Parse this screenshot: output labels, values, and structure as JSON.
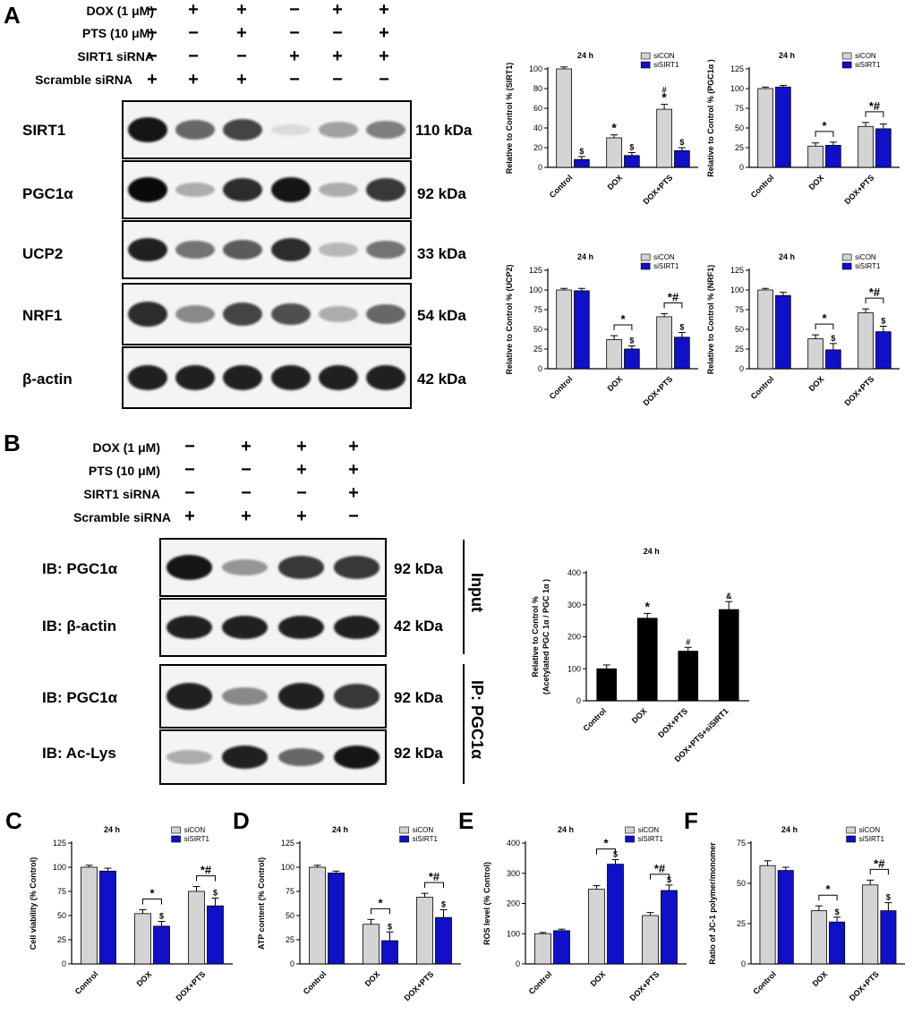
{
  "panels": {
    "a": "A",
    "b": "B",
    "c": "C",
    "d": "D",
    "e": "E",
    "f": "F"
  },
  "panelA": {
    "conditions": [
      {
        "label": "DOX (1 μM)",
        "signs": [
          "−",
          "+",
          "+",
          "−",
          "+",
          "+"
        ]
      },
      {
        "label": "PTS (10 μM)",
        "signs": [
          "−",
          "−",
          "+",
          "−",
          "−",
          "+"
        ]
      },
      {
        "label": "SIRT1 siRNA",
        "signs": [
          "−",
          "−",
          "−",
          "+",
          "+",
          "+"
        ]
      },
      {
        "label": "Scramble siRNA",
        "signs": [
          "+",
          "+",
          "+",
          "−",
          "−",
          "−"
        ]
      }
    ],
    "blots": [
      {
        "name": "SIRT1",
        "kda": "110 kDa",
        "intensity": [
          0.95,
          0.6,
          0.75,
          0.1,
          0.35,
          0.5
        ]
      },
      {
        "name": "PGC1α",
        "kda": "92 kDa",
        "intensity": [
          1.0,
          0.3,
          0.85,
          0.95,
          0.3,
          0.8
        ]
      },
      {
        "name": "UCP2",
        "kda": "33 kDa",
        "intensity": [
          0.9,
          0.55,
          0.65,
          0.85,
          0.25,
          0.55
        ]
      },
      {
        "name": "NRF1",
        "kda": "54 kDa",
        "intensity": [
          0.85,
          0.45,
          0.75,
          0.7,
          0.3,
          0.6
        ]
      },
      {
        "name": "β-actin",
        "kda": "42 kDa",
        "intensity": [
          0.9,
          0.9,
          0.9,
          0.9,
          0.9,
          0.9
        ]
      }
    ]
  },
  "panelB": {
    "conditions": [
      {
        "label": "DOX (1 μM)",
        "signs": [
          "−",
          "+",
          "+",
          "+"
        ]
      },
      {
        "label": "PTS (10 μM)",
        "signs": [
          "−",
          "−",
          "+",
          "+"
        ]
      },
      {
        "label": "SIRT1 siRNA",
        "signs": [
          "−",
          "−",
          "−",
          "+"
        ]
      },
      {
        "label": "Scramble siRNA",
        "signs": [
          "+",
          "+",
          "+",
          "−"
        ]
      }
    ],
    "blots": [
      {
        "name": "IB: PGC1α",
        "kda": "92 kDa",
        "intensity": [
          0.95,
          0.4,
          0.8,
          0.8
        ]
      },
      {
        "name": "IB: β-actin",
        "kda": "42 kDa",
        "intensity": [
          0.9,
          0.9,
          0.9,
          0.9
        ]
      },
      {
        "name": "IB: PGC1α",
        "kda": "92 kDa",
        "intensity": [
          0.9,
          0.45,
          0.9,
          0.8
        ]
      },
      {
        "name": "IB:  Ac-Lys",
        "kda": "92 kDa",
        "intensity": [
          0.3,
          0.9,
          0.6,
          0.95
        ]
      }
    ],
    "input_label": "Input",
    "ip_label": "IP: PGC1α"
  },
  "chart_data": [
    {
      "id": "a1",
      "type": "bar",
      "title": "24 h",
      "ylabel": "Relative to Control % (SIRT1)",
      "ylim": [
        0,
        100
      ],
      "yticks": [
        0,
        20,
        40,
        60,
        80,
        100
      ],
      "categories": [
        "Control",
        "DOX",
        "DOX+PTS"
      ],
      "legend": [
        "siCON",
        "siSIRT1"
      ],
      "series": [
        {
          "name": "siCON",
          "values": [
            100,
            30,
            59
          ],
          "errors": [
            2,
            3,
            5
          ]
        },
        {
          "name": "siSIRT1",
          "values": [
            8,
            12,
            17
          ],
          "errors": [
            3,
            3,
            3
          ]
        }
      ],
      "annotations": [
        {
          "cat": 1,
          "s": 0,
          "text": "*"
        },
        {
          "cat": 2,
          "s": 0,
          "text": "*"
        },
        {
          "cat": 2,
          "s": 0,
          "text": "#"
        },
        {
          "cat": 0,
          "s": 1,
          "text": "$"
        },
        {
          "cat": 1,
          "s": 1,
          "text": "$"
        },
        {
          "cat": 2,
          "s": 1,
          "text": "$"
        }
      ],
      "brackets": []
    },
    {
      "id": "a2",
      "type": "bar",
      "title": "24 h",
      "ylabel": "Relative to Control % (PGC1α )",
      "ylim": [
        0,
        125
      ],
      "yticks": [
        0,
        25,
        50,
        75,
        100,
        125
      ],
      "categories": [
        "Control",
        "DOX",
        "DOX+PTS"
      ],
      "legend": [
        "siCON",
        "siSIRT1"
      ],
      "series": [
        {
          "name": "siCON",
          "values": [
            100,
            27,
            52
          ],
          "errors": [
            2,
            4,
            5
          ]
        },
        {
          "name": "siSIRT1",
          "values": [
            102,
            28,
            49
          ],
          "errors": [
            2,
            4,
            6
          ]
        }
      ],
      "annotations": [],
      "brackets": [
        {
          "cat": 1,
          "text": "*"
        },
        {
          "cat": 2,
          "text": "*#"
        }
      ]
    },
    {
      "id": "a3",
      "type": "bar",
      "title": "24 h",
      "ylabel": "Relative to Control % (UCP2)",
      "ylim": [
        0,
        125
      ],
      "yticks": [
        0,
        25,
        50,
        75,
        100,
        125
      ],
      "categories": [
        "Control",
        "DOX",
        "DOX+PTS"
      ],
      "legend": [
        "siCON",
        "siSIRT1"
      ],
      "series": [
        {
          "name": "siCON",
          "values": [
            100,
            37,
            66
          ],
          "errors": [
            2,
            5,
            4
          ]
        },
        {
          "name": "siSIRT1",
          "values": [
            99,
            25,
            40
          ],
          "errors": [
            3,
            4,
            6
          ]
        }
      ],
      "annotations": [
        {
          "cat": 1,
          "s": 1,
          "text": "$"
        },
        {
          "cat": 2,
          "s": 1,
          "text": "$"
        }
      ],
      "brackets": [
        {
          "cat": 1,
          "text": "*"
        },
        {
          "cat": 2,
          "text": "*#"
        }
      ]
    },
    {
      "id": "a4",
      "type": "bar",
      "title": "24 h",
      "ylabel": "Relative to Control % (NRF1)",
      "ylim": [
        0,
        125
      ],
      "yticks": [
        0,
        25,
        50,
        75,
        100,
        125
      ],
      "categories": [
        "Control",
        "DOX",
        "DOX+PTS"
      ],
      "legend": [
        "siCON",
        "siSIRT1"
      ],
      "series": [
        {
          "name": "siCON",
          "values": [
            100,
            38,
            71
          ],
          "errors": [
            2,
            5,
            5
          ]
        },
        {
          "name": "siSIRT1",
          "values": [
            93,
            24,
            47
          ],
          "errors": [
            4,
            8,
            7
          ]
        }
      ],
      "annotations": [
        {
          "cat": 1,
          "s": 1,
          "text": "$"
        },
        {
          "cat": 2,
          "s": 1,
          "text": "$"
        }
      ],
      "brackets": [
        {
          "cat": 1,
          "text": "*"
        },
        {
          "cat": 2,
          "text": "*#"
        }
      ]
    },
    {
      "id": "b1",
      "type": "bar",
      "title": "24 h",
      "ylabel": "Relative to Control %",
      "ylabel2": "(Acetylated PGC 1α / PGC 1α )",
      "ylim": [
        0,
        400
      ],
      "yticks": [
        0,
        100,
        200,
        300,
        400
      ],
      "categories": [
        "Control",
        "DOX",
        "DOX+PTS",
        "DOX+PTS+siSIRT1"
      ],
      "legend": [],
      "series": [
        {
          "name": "Acetylated",
          "values": [
            100,
            258,
            155,
            285
          ],
          "errors": [
            12,
            15,
            12,
            25
          ]
        }
      ],
      "annotations": [
        {
          "cat": 1,
          "s": 0,
          "text": "*"
        },
        {
          "cat": 2,
          "s": 0,
          "text": "#"
        },
        {
          "cat": 3,
          "s": 0,
          "text": "&"
        }
      ],
      "brackets": []
    },
    {
      "id": "c",
      "type": "bar",
      "title": "24 h",
      "ylabel": "Cell viability (% Control)",
      "ylim": [
        0,
        125
      ],
      "yticks": [
        0,
        25,
        50,
        75,
        100,
        125
      ],
      "categories": [
        "Control",
        "DOX",
        "DOX+PTS"
      ],
      "legend": [
        "siCON",
        "siSIRT1"
      ],
      "series": [
        {
          "name": "siCON",
          "values": [
            100,
            52,
            75
          ],
          "errors": [
            2,
            4,
            5
          ]
        },
        {
          "name": "siSIRT1",
          "values": [
            96,
            39,
            60
          ],
          "errors": [
            3,
            5,
            8
          ]
        }
      ],
      "annotations": [
        {
          "cat": 1,
          "s": 1,
          "text": "$"
        },
        {
          "cat": 2,
          "s": 1,
          "text": "$"
        }
      ],
      "brackets": [
        {
          "cat": 1,
          "text": "*"
        },
        {
          "cat": 2,
          "text": "*#"
        }
      ]
    },
    {
      "id": "d",
      "type": "bar",
      "title": "24 h",
      "ylabel": "ATP content (% Control)",
      "ylim": [
        0,
        125
      ],
      "yticks": [
        0,
        25,
        50,
        75,
        100,
        125
      ],
      "categories": [
        "Control",
        "DOX",
        "DOX+PTS"
      ],
      "legend": [
        "siCON",
        "siSIRT1"
      ],
      "series": [
        {
          "name": "siCON",
          "values": [
            100,
            41,
            69
          ],
          "errors": [
            2,
            5,
            4
          ]
        },
        {
          "name": "siSIRT1",
          "values": [
            94,
            24,
            48
          ],
          "errors": [
            2,
            9,
            8
          ]
        }
      ],
      "annotations": [
        {
          "cat": 1,
          "s": 1,
          "text": "$"
        },
        {
          "cat": 2,
          "s": 1,
          "text": "$"
        }
      ],
      "brackets": [
        {
          "cat": 1,
          "text": "*"
        },
        {
          "cat": 2,
          "text": "*#"
        }
      ]
    },
    {
      "id": "e",
      "type": "bar",
      "title": "24 h",
      "ylabel": "ROS level (% Control)",
      "ylim": [
        0,
        400
      ],
      "yticks": [
        0,
        100,
        200,
        300,
        400
      ],
      "categories": [
        "Control",
        "DOX",
        "DOX+PTS"
      ],
      "legend": [
        "siCON",
        "siSIRT1"
      ],
      "series": [
        {
          "name": "siCON",
          "values": [
            100,
            247,
            160
          ],
          "errors": [
            4,
            12,
            10
          ]
        },
        {
          "name": "siSIRT1",
          "values": [
            110,
            330,
            243
          ],
          "errors": [
            5,
            15,
            18
          ]
        }
      ],
      "annotations": [
        {
          "cat": 1,
          "s": 1,
          "text": "$"
        },
        {
          "cat": 2,
          "s": 1,
          "text": "$"
        }
      ],
      "brackets": [
        {
          "cat": 1,
          "text": "*"
        },
        {
          "cat": 2,
          "text": "*#"
        }
      ]
    },
    {
      "id": "f",
      "type": "bar",
      "title": "24 h",
      "ylabel": "Ratio of JC-1 polymer/monomer",
      "ylim": [
        0,
        75
      ],
      "yticks": [
        0,
        25,
        50,
        75
      ],
      "categories": [
        "Control",
        "DOX",
        "DOX+PTS"
      ],
      "legend": [
        "siCON",
        "siSIRT1"
      ],
      "series": [
        {
          "name": "siCON",
          "values": [
            61,
            33,
            49
          ],
          "errors": [
            3,
            3,
            3
          ]
        },
        {
          "name": "siSIRT1",
          "values": [
            58,
            26,
            33
          ],
          "errors": [
            2,
            3,
            5
          ]
        }
      ],
      "annotations": [
        {
          "cat": 1,
          "s": 1,
          "text": "$"
        },
        {
          "cat": 2,
          "s": 1,
          "text": "$"
        }
      ],
      "brackets": [
        {
          "cat": 1,
          "text": "*"
        },
        {
          "cat": 2,
          "text": "*#"
        }
      ]
    }
  ],
  "colors": {
    "siCON": "#d4d4d4",
    "siSIRT1": "#1010c8",
    "single": "#000000",
    "band": "#0a0a0a"
  }
}
